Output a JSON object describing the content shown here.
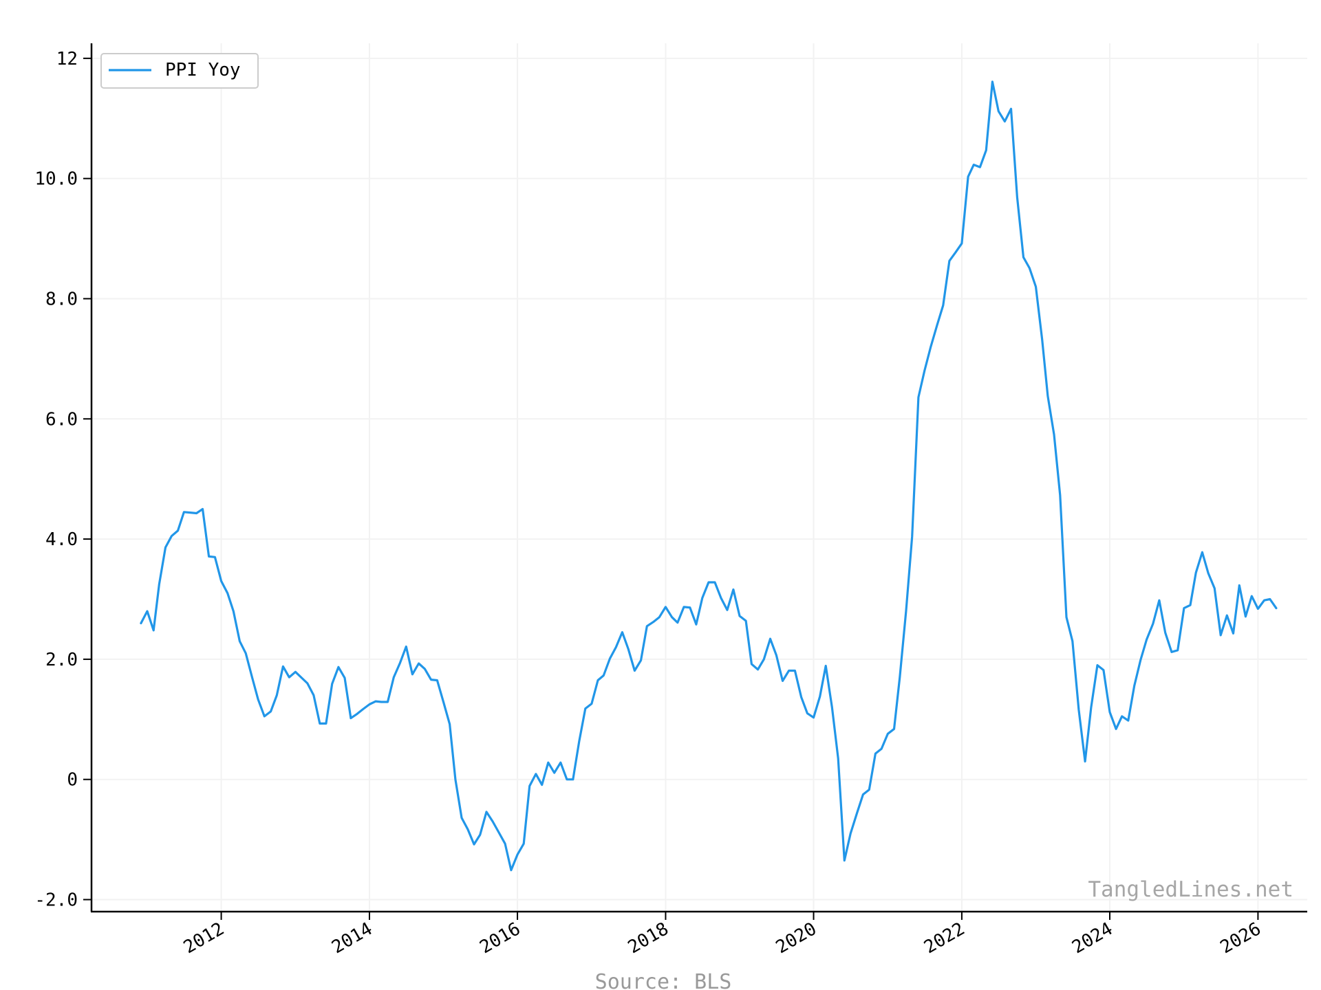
{
  "chart_data": {
    "type": "line",
    "title": "",
    "xlabel": "",
    "ylabel": "",
    "xlim": [
      "2010-04-01",
      "2026-09-01"
    ],
    "ylim": [
      -2.2,
      12.25
    ],
    "x_ticks": [
      "2012-01-01",
      "2014-01-01",
      "2016-01-01",
      "2018-01-01",
      "2020-01-01",
      "2022-01-01",
      "2024-01-01",
      "2026-01-01"
    ],
    "x_tick_labels": [
      "2012",
      "2014",
      "2016",
      "2018",
      "2020",
      "2022",
      "2024",
      "2026"
    ],
    "y_ticks": [
      -2,
      0,
      2,
      4,
      6,
      8,
      10,
      12
    ],
    "y_tick_labels": [
      "-2.0",
      "0",
      "2.0",
      "4.0",
      "6.0",
      "8.0",
      "10.0",
      "12"
    ],
    "grid": true,
    "legend": {
      "position": "top-left",
      "entries": [
        "PPI Yoy"
      ]
    },
    "series": [
      {
        "name": "PPI Yoy",
        "color": "#2196e8",
        "start": "2010-12",
        "values": [
          2.6,
          2.8,
          2.48,
          3.25,
          3.86,
          4.05,
          4.14,
          4.45,
          4.44,
          4.43,
          4.5,
          3.71,
          3.7,
          3.3,
          3.1,
          2.8,
          2.3,
          2.1,
          1.7,
          1.33,
          1.05,
          1.13,
          1.4,
          1.88,
          1.7,
          1.79,
          1.69,
          1.6,
          1.4,
          0.93,
          0.93,
          1.59,
          1.87,
          1.69,
          1.02,
          1.09,
          1.17,
          1.25,
          1.3,
          1.29,
          1.29,
          1.7,
          1.94,
          2.21,
          1.75,
          1.93,
          1.84,
          1.66,
          1.65,
          1.29,
          0.92,
          0.0,
          -0.64,
          -0.83,
          -1.08,
          -0.92,
          -0.54,
          -0.7,
          -0.88,
          -1.07,
          -1.51,
          -1.25,
          -1.07,
          -0.11,
          0.09,
          -0.09,
          0.28,
          0.11,
          0.28,
          0.0,
          0.0,
          0.64,
          1.18,
          1.26,
          1.65,
          1.73,
          2.01,
          2.2,
          2.45,
          2.17,
          1.81,
          1.98,
          2.55,
          2.62,
          2.7,
          2.87,
          2.7,
          2.61,
          2.87,
          2.86,
          2.58,
          3.02,
          3.28,
          3.28,
          3.02,
          2.82,
          3.16,
          2.72,
          2.64,
          1.92,
          1.83,
          2.0,
          2.34,
          2.07,
          1.64,
          1.81,
          1.81,
          1.37,
          1.1,
          1.03,
          1.38,
          1.89,
          1.2,
          0.35,
          -1.35,
          -0.9,
          -0.57,
          -0.25,
          -0.17,
          0.43,
          0.51,
          0.76,
          0.84,
          1.7,
          2.8,
          4.04,
          6.36,
          6.8,
          7.2,
          7.56,
          7.89,
          8.63,
          8.77,
          8.92,
          10.03,
          10.23,
          10.19,
          10.47,
          11.61,
          11.12,
          10.95,
          11.16,
          9.69,
          8.69,
          8.51,
          8.2,
          7.33,
          6.38,
          5.74,
          4.73,
          2.7,
          2.3,
          1.16,
          0.3,
          1.2,
          1.9,
          1.82,
          1.12,
          0.84,
          1.05,
          0.98,
          1.56,
          1.99,
          2.33,
          2.59,
          2.98,
          2.44,
          2.12,
          2.15,
          2.85,
          2.9,
          3.44,
          3.78,
          3.43,
          3.18,
          2.4,
          2.73,
          2.43,
          3.23,
          2.71,
          3.05,
          2.84,
          2.98,
          3.0,
          2.85
        ]
      }
    ],
    "watermark": "TangledLines.net",
    "source": "Source: BLS"
  }
}
